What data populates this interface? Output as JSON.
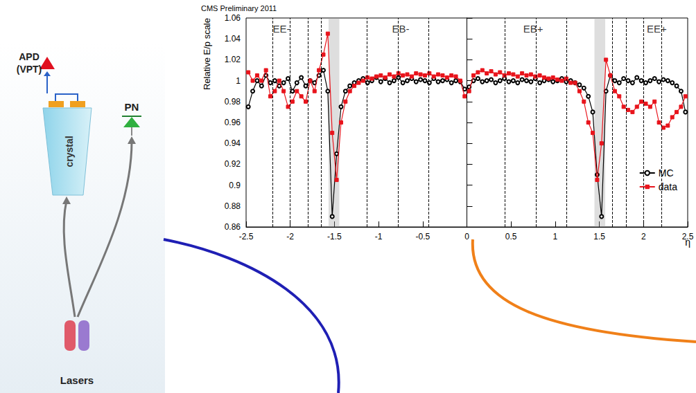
{
  "chart_data": {
    "type": "line",
    "title": "CMS Preliminary 2011",
    "ylabel": "Relative E/p scale",
    "xlabel": "η",
    "x": [
      -2.475,
      -2.425,
      -2.375,
      -2.325,
      -2.275,
      -2.225,
      -2.175,
      -2.125,
      -2.075,
      -2.025,
      -1.975,
      -1.925,
      -1.875,
      -1.825,
      -1.775,
      -1.725,
      -1.675,
      -1.625,
      -1.575,
      -1.525,
      -1.475,
      -1.425,
      -1.375,
      -1.325,
      -1.275,
      -1.225,
      -1.175,
      -1.125,
      -1.075,
      -1.025,
      -0.975,
      -0.925,
      -0.875,
      -0.825,
      -0.775,
      -0.725,
      -0.675,
      -0.625,
      -0.575,
      -0.525,
      -0.475,
      -0.425,
      -0.375,
      -0.325,
      -0.275,
      -0.225,
      -0.175,
      -0.125,
      -0.075,
      -0.025,
      0.025,
      0.075,
      0.125,
      0.175,
      0.225,
      0.275,
      0.325,
      0.375,
      0.425,
      0.475,
      0.525,
      0.575,
      0.625,
      0.675,
      0.725,
      0.775,
      0.825,
      0.875,
      0.925,
      0.975,
      1.025,
      1.075,
      1.125,
      1.175,
      1.225,
      1.275,
      1.325,
      1.375,
      1.425,
      1.475,
      1.525,
      1.575,
      1.625,
      1.675,
      1.725,
      1.775,
      1.825,
      1.875,
      1.925,
      1.975,
      2.025,
      2.075,
      2.125,
      2.175,
      2.225,
      2.275,
      2.325,
      2.375,
      2.425,
      2.475
    ],
    "series": [
      {
        "name": "MC",
        "color": "#000000",
        "marker": "circle_open",
        "line_style": "solid",
        "values": [
          0.975,
          0.99,
          1.0,
          0.995,
          1.005,
          0.998,
          1.0,
          0.995,
          0.998,
          1.002,
          0.99,
          0.998,
          1.003,
          0.995,
          1.0,
          0.998,
          1.005,
          1.01,
          0.99,
          0.87,
          0.93,
          0.975,
          0.99,
          0.995,
          0.998,
          1.0,
          1.002,
          0.998,
          1.0,
          1.003,
          0.999,
          1.002,
          0.998,
          1.0,
          1.003,
          0.998,
          1.0,
          1.002,
          0.999,
          1.001,
          1.0,
          0.998,
          1.002,
          0.999,
          1.0,
          1.001,
          0.998,
          1.0,
          0.999,
          0.992,
          0.994,
          1.0,
          1.002,
          0.999,
          1.0,
          1.001,
          0.998,
          1.0,
          1.002,
          0.999,
          1.0,
          0.998,
          1.001,
          1.0,
          0.999,
          1.002,
          0.998,
          1.0,
          1.001,
          0.999,
          1.0,
          1.002,
          0.999,
          1.0,
          0.998,
          0.996,
          0.993,
          0.985,
          0.97,
          0.91,
          0.87,
          0.99,
          1.005,
          1.0,
          0.998,
          1.002,
          1.0,
          0.998,
          1.003,
          1.0,
          0.998,
          1.0,
          1.002,
          0.999,
          1.001,
          1.0,
          0.998,
          0.995,
          0.99,
          0.97
        ]
      },
      {
        "name": "data",
        "color": "#e8141c",
        "marker": "square",
        "line_style": "solid",
        "values": [
          1.008,
          1.0,
          1.005,
          1.0,
          1.01,
          0.985,
          0.99,
          1.0,
          0.99,
          0.975,
          0.98,
          0.99,
          0.985,
          0.98,
          1.0,
          0.99,
          1.01,
          1.025,
          1.045,
          0.95,
          0.905,
          0.96,
          0.98,
          0.99,
          0.995,
          0.998,
          1.0,
          1.003,
          1.002,
          1.004,
          1.005,
          1.003,
          1.006,
          1.004,
          1.007,
          1.005,
          1.006,
          1.004,
          1.007,
          1.006,
          1.005,
          1.007,
          1.004,
          1.006,
          1.005,
          1.003,
          1.005,
          1.004,
          1.0,
          0.985,
          0.99,
          1.005,
          1.008,
          1.01,
          1.007,
          1.009,
          1.006,
          1.008,
          1.005,
          1.007,
          1.006,
          1.004,
          1.007,
          1.005,
          1.006,
          1.004,
          1.005,
          1.003,
          1.002,
          1.003,
          1.001,
          1.0,
          1.002,
          0.998,
          0.998,
          0.99,
          0.98,
          0.96,
          0.95,
          0.905,
          0.94,
          1.02,
          1.005,
          0.99,
          0.985,
          0.975,
          0.972,
          0.97,
          0.975,
          0.98,
          0.978,
          0.975,
          0.98,
          0.96,
          0.955,
          0.957,
          0.965,
          0.97,
          0.975,
          0.985
        ]
      }
    ],
    "xlim": [
      -2.5,
      2.5
    ],
    "xticks": [
      -2.5,
      -2,
      -1.5,
      -1,
      -0.5,
      0,
      0.5,
      1,
      1.5,
      2,
      2.5
    ],
    "ylim": [
      0.86,
      1.06
    ],
    "yticks": [
      0.86,
      0.88,
      0.9,
      0.92,
      0.94,
      0.96,
      0.98,
      1,
      1.02,
      1.04,
      1.06
    ],
    "boundaries": [
      -2.2,
      -2.0,
      -1.8,
      -1.653,
      -1.131,
      -0.783,
      -0.435,
      0,
      0.435,
      0.783,
      1.131,
      1.653,
      1.8,
      2.0,
      2.2
    ],
    "gap_bands": [
      [
        -1.566,
        -1.4442
      ],
      [
        1.4442,
        1.566
      ]
    ],
    "annotations": [
      {
        "text": "EE-",
        "x": -2.1,
        "y": 1.05
      },
      {
        "text": "EB-",
        "x": -0.75,
        "y": 1.05
      },
      {
        "text": "EB+",
        "x": 0.75,
        "y": 1.05
      },
      {
        "text": "EE+",
        "x": 2.15,
        "y": 1.05
      }
    ],
    "grid": false,
    "legend": "lower right"
  },
  "diagram": {
    "detector": "APD",
    "detector_alt": "(VPT)",
    "crystal": "crystal",
    "reference": "PN",
    "source": "Lasers"
  }
}
